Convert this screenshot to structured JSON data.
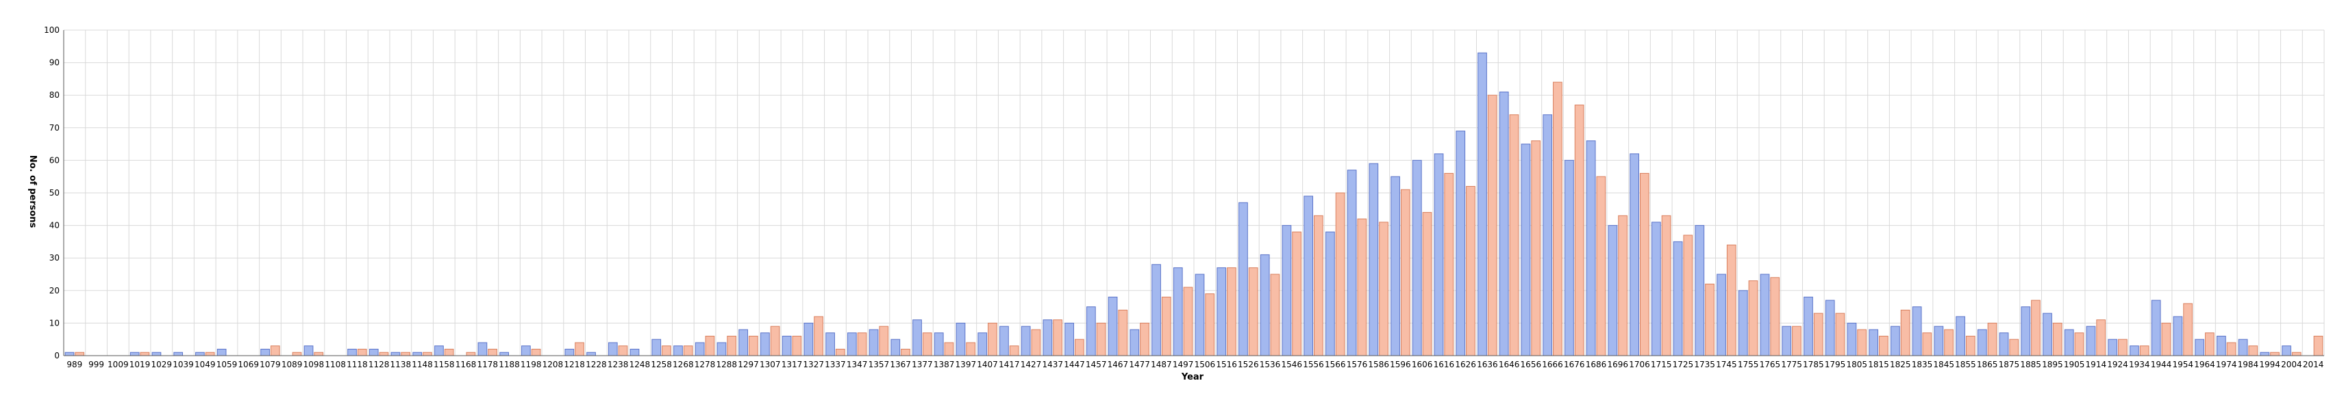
{
  "chart_data": {
    "type": "bar",
    "title": "",
    "xlabel": "Year",
    "ylabel": "No. of persons",
    "ylim": [
      0,
      100
    ],
    "yticks": [
      0,
      10,
      20,
      30,
      40,
      50,
      60,
      70,
      80,
      90,
      100
    ],
    "grid": true,
    "legend": "none",
    "colors": {
      "series_a_fill": "#a3b8ef",
      "series_a_stroke": "#5b74c9",
      "series_b_fill": "#f8bda6",
      "series_b_stroke": "#d9805f",
      "grid": "#d9d9d9",
      "axis": "#555555"
    },
    "x_tick_labels": [
      "989",
      "999",
      "1009",
      "1019",
      "1029",
      "1039",
      "1049",
      "1059",
      "1069",
      "1079",
      "1089",
      "1098",
      "1108",
      "1118",
      "1128",
      "1138",
      "1148",
      "1158",
      "1168",
      "1178",
      "1188",
      "1198",
      "1208",
      "1218",
      "1228",
      "1238",
      "1248",
      "1258",
      "1268",
      "1278",
      "1288",
      "1297",
      "1307",
      "1317",
      "1327",
      "1337",
      "1347",
      "1357",
      "1367",
      "1377",
      "1387",
      "1397",
      "1407",
      "1417",
      "1427",
      "1437",
      "1447",
      "1457",
      "1467",
      "1477",
      "1487",
      "1497",
      "1506",
      "1516",
      "1526",
      "1536",
      "1546",
      "1556",
      "1566",
      "1576",
      "1586",
      "1596",
      "1606",
      "1616",
      "1626",
      "1636",
      "1646",
      "1656",
      "1666",
      "1676",
      "1686",
      "1696",
      "1706",
      "1715",
      "1725",
      "1735",
      "1745",
      "1755",
      "1765",
      "1775",
      "1785",
      "1795",
      "1805",
      "1815",
      "1825",
      "1835",
      "1845",
      "1855",
      "1865",
      "1875",
      "1885",
      "1895",
      "1905",
      "1914",
      "1924",
      "1934",
      "1944",
      "1954",
      "1964",
      "1974",
      "1984",
      "1994",
      "2004",
      "2014"
    ],
    "series": [
      {
        "values": [
          1,
          0,
          0,
          1,
          1,
          1,
          1,
          2,
          0,
          2,
          0,
          3,
          0,
          2,
          2,
          1,
          1,
          3,
          0,
          4,
          1,
          3,
          0,
          2,
          1,
          4,
          2,
          5,
          3,
          4,
          4,
          8,
          7,
          6,
          10,
          7,
          7,
          8,
          5,
          11,
          7,
          10,
          7,
          9,
          9,
          11,
          10,
          15,
          18,
          8,
          28,
          27,
          25,
          27,
          47,
          31,
          40,
          49,
          38,
          57,
          59,
          55,
          60,
          62,
          69,
          93,
          81,
          65,
          74,
          60,
          66,
          40,
          62,
          41,
          35,
          40,
          25,
          20,
          25,
          9,
          18,
          17,
          10,
          8,
          9,
          15,
          9,
          12,
          8,
          7,
          15,
          13,
          8,
          9,
          5,
          3,
          17,
          12,
          5,
          6,
          5,
          1,
          3,
          0
        ]
      },
      {
        "values": [
          1,
          0,
          0,
          1,
          0,
          0,
          1,
          0,
          0,
          3,
          1,
          1,
          0,
          2,
          1,
          1,
          1,
          2,
          1,
          2,
          0,
          2,
          0,
          4,
          0,
          3,
          0,
          3,
          3,
          6,
          6,
          6,
          9,
          6,
          12,
          2,
          7,
          9,
          2,
          7,
          4,
          4,
          10,
          3,
          8,
          11,
          5,
          10,
          14,
          10,
          18,
          21,
          19,
          27,
          27,
          25,
          38,
          43,
          50,
          42,
          41,
          51,
          44,
          56,
          52,
          80,
          74,
          66,
          84,
          77,
          55,
          43,
          56,
          43,
          37,
          22,
          34,
          23,
          24,
          9,
          13,
          13,
          8,
          6,
          14,
          7,
          8,
          6,
          10,
          5,
          17,
          10,
          7,
          11,
          5,
          3,
          10,
          16,
          7,
          4,
          3,
          1,
          1,
          6
        ]
      }
    ]
  }
}
